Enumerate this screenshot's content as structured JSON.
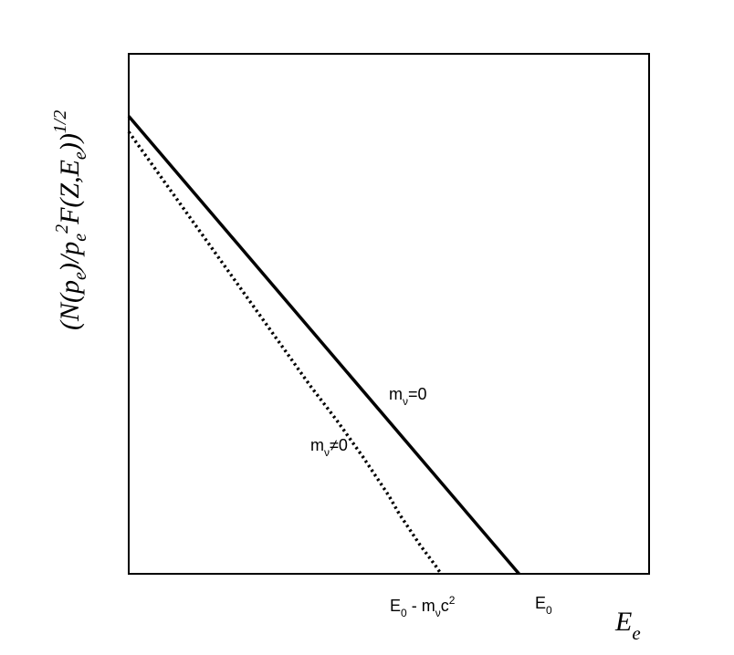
{
  "chart_data": {
    "type": "line",
    "title": "",
    "ylabel": {
      "parts": [
        "(N(p",
        "e",
        ")/p",
        "e",
        "2",
        "F(Z,E",
        "e",
        "))",
        "1/2"
      ]
    },
    "xlabel": {
      "main": "E",
      "sub": "e"
    },
    "xlim": [
      0,
      1
    ],
    "ylim": [
      0,
      1
    ],
    "grid": false,
    "ticks": {
      "e0_minus": {
        "e": "E",
        "zero": "0",
        "rest": " - m",
        "nu": "ν",
        "c": "c",
        "sq": "2",
        "x": 0.6
      },
      "e0": {
        "e": "E",
        "zero": "0",
        "x": 0.75
      }
    },
    "series": [
      {
        "name": "mν=0",
        "label": {
          "m": "m",
          "nu": "ν",
          "rest": "=0"
        },
        "style": "solid",
        "x": [
          0.0,
          0.75
        ],
        "y": [
          0.88,
          0.0
        ]
      },
      {
        "name": "mν≠0",
        "label": {
          "m": "m",
          "nu": "ν",
          "rest": "≠0"
        },
        "style": "dotted",
        "x": [
          0.0,
          0.05,
          0.1,
          0.15,
          0.2,
          0.25,
          0.3,
          0.35,
          0.4,
          0.45,
          0.5,
          0.52,
          0.54,
          0.56,
          0.575,
          0.59,
          0.6
        ],
        "y": [
          0.85,
          0.78,
          0.71,
          0.64,
          0.57,
          0.5,
          0.43,
          0.36,
          0.295,
          0.225,
          0.15,
          0.115,
          0.085,
          0.055,
          0.035,
          0.015,
          0.0
        ]
      }
    ]
  }
}
